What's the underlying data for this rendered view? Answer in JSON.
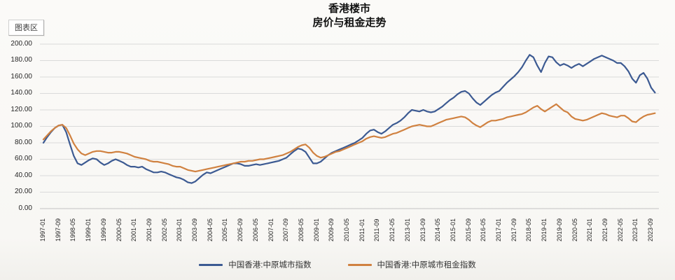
{
  "title": {
    "line1": "香港楼市",
    "line2": "房价与租金走势"
  },
  "tooltip": {
    "label": "图表区"
  },
  "chart_data": {
    "type": "line",
    "title": "香港楼市 房价与租金走势",
    "x_start": "1997-01",
    "x_step_months": 2,
    "x_ticklabels": [
      "1997-01",
      "1997-09",
      "1998-05",
      "1999-01",
      "1999-09",
      "2000-05",
      "2001-01",
      "2001-09",
      "2002-05",
      "2003-01",
      "2003-09",
      "2004-05",
      "2005-01",
      "2005-09",
      "2006-05",
      "2007-01",
      "2007-09",
      "2008-05",
      "2009-01",
      "2009-09",
      "2010-05",
      "2011-01",
      "2011-09",
      "2012-05",
      "2013-01",
      "2013-09",
      "2014-05",
      "2015-01",
      "2015-09",
      "2016-05",
      "2017-01",
      "2017-09",
      "2018-05",
      "2019-01",
      "2019-09",
      "2020-05",
      "2021-01",
      "2021-09",
      "2022-05",
      "2023-01",
      "2023-09"
    ],
    "x_tick_interval_months": 8,
    "ylim": [
      0,
      200
    ],
    "y_ticks": [
      {
        "label": "200.00",
        "value": 200
      },
      {
        "label": "180.00",
        "value": 180
      },
      {
        "label": "160.00",
        "value": 160
      },
      {
        "label": "140.00",
        "value": 140
      },
      {
        "label": "120.00",
        "value": 120
      },
      {
        "label": "100.00",
        "value": 100
      },
      {
        "label": "80.00",
        "value": 80
      },
      {
        "label": "60.00",
        "value": 60
      },
      {
        "label": "40.00",
        "value": 40
      },
      {
        "label": "20.00",
        "value": 20
      },
      {
        "label": "0.00",
        "value": 0
      }
    ],
    "grid": true,
    "grid_color": "#dadada",
    "axis_line_color": "#c2c2c2",
    "legend_position": "bottom",
    "series": [
      {
        "name": "中国香港:中原城市指数",
        "color": "#3c5a92",
        "values": [
          80,
          87,
          93,
          98,
          101,
          102,
          93,
          78,
          64,
          55,
          53,
          56,
          59,
          61,
          60,
          56,
          53,
          55,
          58,
          60,
          58,
          56,
          53,
          51,
          51,
          50,
          51,
          48,
          46,
          44,
          44,
          45,
          44,
          42,
          40,
          38,
          37,
          35,
          32,
          31,
          33,
          37,
          41,
          44,
          43,
          45,
          47,
          49,
          51,
          53,
          55,
          55,
          54,
          52,
          52,
          53,
          54,
          53,
          54,
          55,
          56,
          57,
          58,
          60,
          62,
          66,
          70,
          73,
          72,
          69,
          62,
          55,
          55,
          57,
          61,
          65,
          68,
          70,
          72,
          74,
          76,
          78,
          80,
          83,
          86,
          91,
          95,
          96,
          93,
          91,
          94,
          98,
          102,
          104,
          107,
          111,
          116,
          120,
          119,
          118,
          120,
          118,
          117,
          118,
          121,
          124,
          128,
          132,
          135,
          139,
          142,
          143,
          140,
          134,
          129,
          126,
          130,
          134,
          138,
          141,
          143,
          148,
          153,
          157,
          161,
          166,
          172,
          180,
          187,
          184,
          174,
          166,
          177,
          185,
          184,
          178,
          174,
          176,
          174,
          171,
          174,
          176,
          173,
          176,
          179,
          182,
          184,
          186,
          184,
          182,
          180,
          177,
          177,
          173,
          167,
          158,
          153,
          162,
          165,
          158,
          147,
          141
        ]
      },
      {
        "name": "中国香港:中原城市租金指数",
        "color": "#d08140",
        "values": [
          84,
          89,
          94,
          98,
          101,
          102,
          98,
          89,
          79,
          72,
          67,
          65,
          67,
          69,
          70,
          70,
          69,
          68,
          68,
          69,
          69,
          68,
          67,
          65,
          63,
          62,
          61,
          60,
          58,
          57,
          57,
          56,
          55,
          54,
          52,
          51,
          51,
          49,
          47,
          46,
          45,
          46,
          47,
          48,
          49,
          50,
          51,
          52,
          53,
          54,
          55,
          56,
          57,
          57,
          58,
          58,
          59,
          60,
          60,
          61,
          62,
          63,
          64,
          65,
          67,
          69,
          72,
          75,
          77,
          78,
          74,
          68,
          64,
          62,
          63,
          65,
          67,
          69,
          70,
          72,
          74,
          76,
          78,
          80,
          82,
          85,
          87,
          88,
          87,
          86,
          87,
          89,
          91,
          92,
          94,
          96,
          98,
          100,
          101,
          102,
          101,
          100,
          100,
          102,
          104,
          106,
          108,
          109,
          110,
          111,
          112,
          111,
          108,
          104,
          101,
          99,
          102,
          105,
          107,
          107,
          108,
          109,
          111,
          112,
          113,
          114,
          115,
          117,
          120,
          123,
          125,
          121,
          118,
          121,
          124,
          127,
          123,
          119,
          117,
          112,
          109,
          108,
          107,
          108,
          110,
          112,
          114,
          116,
          115,
          113,
          112,
          111,
          113,
          113,
          110,
          106,
          105,
          109,
          112,
          114,
          115,
          116
        ]
      }
    ]
  }
}
